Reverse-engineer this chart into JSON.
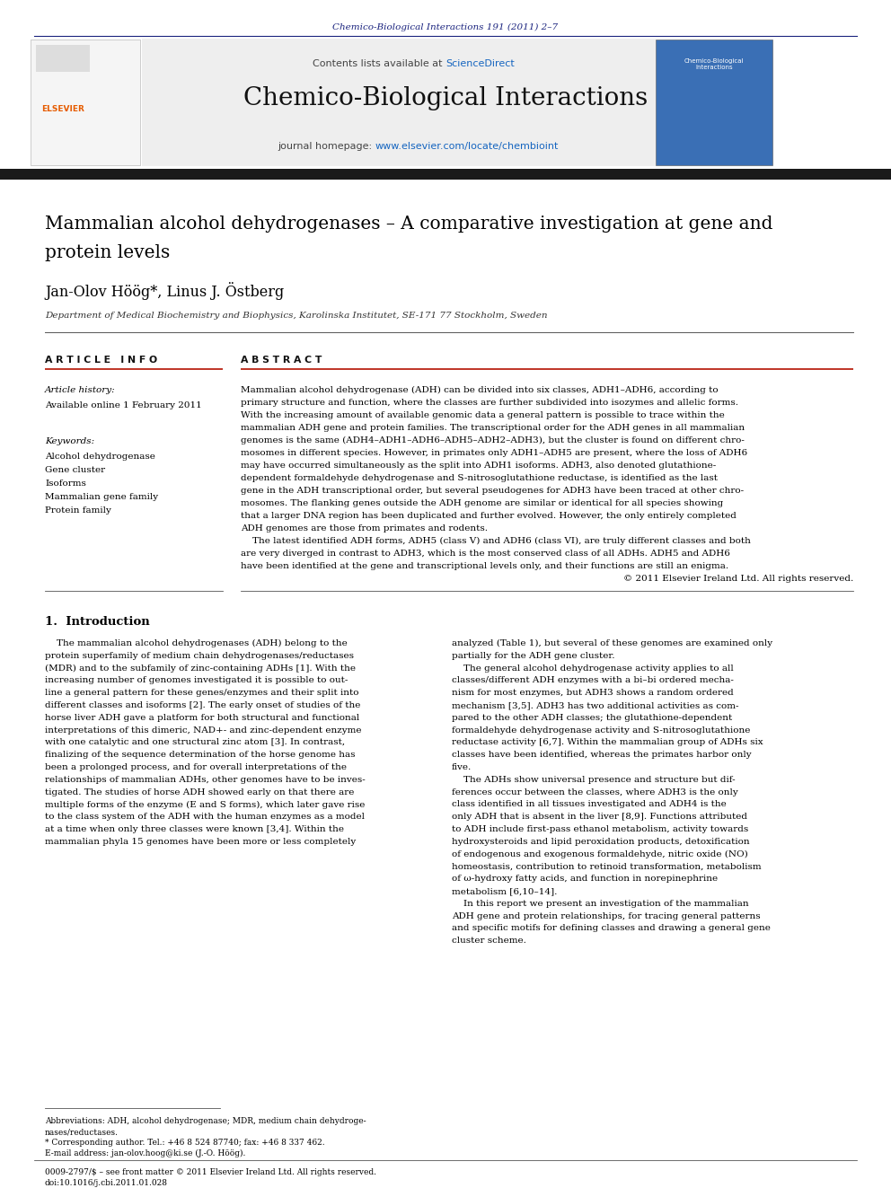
{
  "page_width": 9.92,
  "page_height": 13.23,
  "background_color": "#ffffff",
  "journal_ref": "Chemico-Biological Interactions 191 (2011) 2–7",
  "journal_ref_color": "#1a237e",
  "header_bg": "#eeeeee",
  "header_sciencedirect_color": "#1565c0",
  "journal_title": "Chemico-Biological Interactions",
  "journal_homepage_url_color": "#1565c0",
  "paper_title_line1": "Mammalian alcohol dehydrogenases – A comparative investigation at gene and",
  "paper_title_line2": "protein levels",
  "authors": "Jan-Olov Höög*, Linus J. Östberg",
  "affiliation": "Department of Medical Biochemistry and Biophysics, Karolinska Institutet, SE-171 77 Stockholm, Sweden",
  "article_info_label": "A R T I C L E   I N F O",
  "article_history_label": "Article history:",
  "available_online": "Available online 1 February 2011",
  "keywords_label": "Keywords:",
  "keywords": [
    "Alcohol dehydrogenase",
    "Gene cluster",
    "Isoforms",
    "Mammalian gene family",
    "Protein family"
  ],
  "abstract_label": "A B S T R A C T",
  "section1_title": "1.  Introduction",
  "footnote_abbrev": "Abbreviations: ADH, alcohol dehydrogenase; MDR, medium chain dehydroge-",
  "footnote_abbrev2": "nases/reductases.",
  "footnote_corresponding": "* Corresponding author. Tel.: +46 8 524 87740; fax: +46 8 337 462.",
  "footnote_email": "E-mail address: jan-olov.hoog@ki.se (J.-O. Höög).",
  "footer_issn": "0009-2797/$ – see front matter © 2011 Elsevier Ireland Ltd. All rights reserved.",
  "footer_doi": "doi:10.1016/j.cbi.2011.01.028",
  "divider_color": "#1a237e",
  "dark_bar_color": "#1a1a1a",
  "red_line_color": "#c0392b",
  "abstract_lines": [
    "Mammalian alcohol dehydrogenase (ADH) can be divided into six classes, ADH1–ADH6, according to",
    "primary structure and function, where the classes are further subdivided into isozymes and allelic forms.",
    "With the increasing amount of available genomic data a general pattern is possible to trace within the",
    "mammalian ADH gene and protein families. The transcriptional order for the ADH genes in all mammalian",
    "genomes is the same (ADH4–ADH1–ADH6–ADH5–ADH2–ADH3), but the cluster is found on different chro-",
    "mosomes in different species. However, in primates only ADH1–ADH5 are present, where the loss of ADH6",
    "may have occurred simultaneously as the split into ADH1 isoforms. ADH3, also denoted glutathione-",
    "dependent formaldehyde dehydrogenase and S-nitrosoglutathione reductase, is identified as the last",
    "gene in the ADH transcriptional order, but several pseudogenes for ADH3 have been traced at other chro-",
    "mosomes. The flanking genes outside the ADH genome are similar or identical for all species showing",
    "that a larger DNA region has been duplicated and further evolved. However, the only entirely completed",
    "ADH genomes are those from primates and rodents.",
    "    The latest identified ADH forms, ADH5 (class V) and ADH6 (class VI), are truly different classes and both",
    "are very diverged in contrast to ADH3, which is the most conserved class of all ADHs. ADH5 and ADH6",
    "have been identified at the gene and transcriptional levels only, and their functions are still an enigma.",
    "© 2011 Elsevier Ireland Ltd. All rights reserved."
  ],
  "col1_lines": [
    "    The mammalian alcohol dehydrogenases (ADH) belong to the",
    "protein superfamily of medium chain dehydrogenases/reductases",
    "(MDR) and to the subfamily of zinc-containing ADHs [1]. With the",
    "increasing number of genomes investigated it is possible to out-",
    "line a general pattern for these genes/enzymes and their split into",
    "different classes and isoforms [2]. The early onset of studies of the",
    "horse liver ADH gave a platform for both structural and functional",
    "interpretations of this dimeric, NAD+- and zinc-dependent enzyme",
    "with one catalytic and one structural zinc atom [3]. In contrast,",
    "finalizing of the sequence determination of the horse genome has",
    "been a prolonged process, and for overall interpretations of the",
    "relationships of mammalian ADHs, other genomes have to be inves-",
    "tigated. The studies of horse ADH showed early on that there are",
    "multiple forms of the enzyme (E and S forms), which later gave rise",
    "to the class system of the ADH with the human enzymes as a model",
    "at a time when only three classes were known [3,4]. Within the",
    "mammalian phyla 15 genomes have been more or less completely"
  ],
  "col2_lines": [
    "analyzed (Table 1), but several of these genomes are examined only",
    "partially for the ADH gene cluster.",
    "    The general alcohol dehydrogenase activity applies to all",
    "classes/different ADH enzymes with a bi–bi ordered mecha-",
    "nism for most enzymes, but ADH3 shows a random ordered",
    "mechanism [3,5]. ADH3 has two additional activities as com-",
    "pared to the other ADH classes; the glutathione-dependent",
    "formaldehyde dehydrogenase activity and S-nitrosoglutathione",
    "reductase activity [6,7]. Within the mammalian group of ADHs six",
    "classes have been identified, whereas the primates harbor only",
    "five.",
    "    The ADHs show universal presence and structure but dif-",
    "ferences occur between the classes, where ADH3 is the only",
    "class identified in all tissues investigated and ADH4 is the",
    "only ADH that is absent in the liver [8,9]. Functions attributed",
    "to ADH include first-pass ethanol metabolism, activity towards",
    "hydroxysteroids and lipid peroxidation products, detoxification",
    "of endogenous and exogenous formaldehyde, nitric oxide (NO)",
    "homeostasis, contribution to retinoid transformation, metabolism",
    "of ω-hydroxy fatty acids, and function in norepinephrine",
    "metabolism [6,10–14].",
    "    In this report we present an investigation of the mammalian",
    "ADH gene and protein relationships, for tracing general patterns",
    "and specific motifs for defining classes and drawing a general gene",
    "cluster scheme."
  ]
}
